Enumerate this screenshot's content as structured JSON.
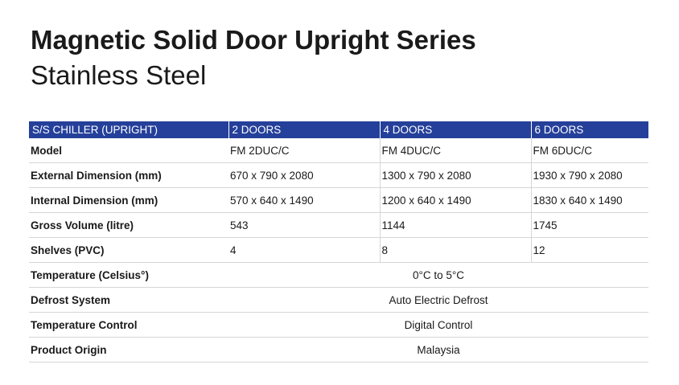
{
  "title": "Magnetic Solid Door Upright Series",
  "subtitle": "Stainless Steel",
  "table": {
    "headers": [
      "S/S CHILLER (UPRIGHT)",
      "2 DOORS",
      "4 DOORS",
      "6 DOORS"
    ],
    "rows": [
      {
        "label": "Model",
        "values": [
          "FM 2DUC/C",
          "FM 4DUC/C",
          "FM 6DUC/C"
        ]
      },
      {
        "label": "External Dimension (mm)",
        "values": [
          "670 x 790 x 2080",
          "1300 x 790 x 2080",
          "1930 x 790 x 2080"
        ]
      },
      {
        "label": "Internal Dimension (mm)",
        "values": [
          "570 x 640 x 1490",
          "1200 x 640 x 1490",
          "1830 x 640 x 1490"
        ]
      },
      {
        "label": "Gross Volume (litre)",
        "values": [
          "543",
          "1144",
          "1745"
        ]
      },
      {
        "label": "Shelves (PVC)",
        "values": [
          "4",
          "8",
          "12"
        ]
      },
      {
        "label": "Temperature (Celsius°)",
        "merged": "0°C to 5°C"
      },
      {
        "label": "Defrost System",
        "merged": "Auto Electric Defrost"
      },
      {
        "label": "Temperature Control",
        "merged": "Digital Control"
      },
      {
        "label": "Product Origin",
        "merged": "Malaysia"
      }
    ]
  },
  "colors": {
    "header_bg": "#25409a",
    "header_text": "#ffffff",
    "rule": "#d6d6d6"
  }
}
